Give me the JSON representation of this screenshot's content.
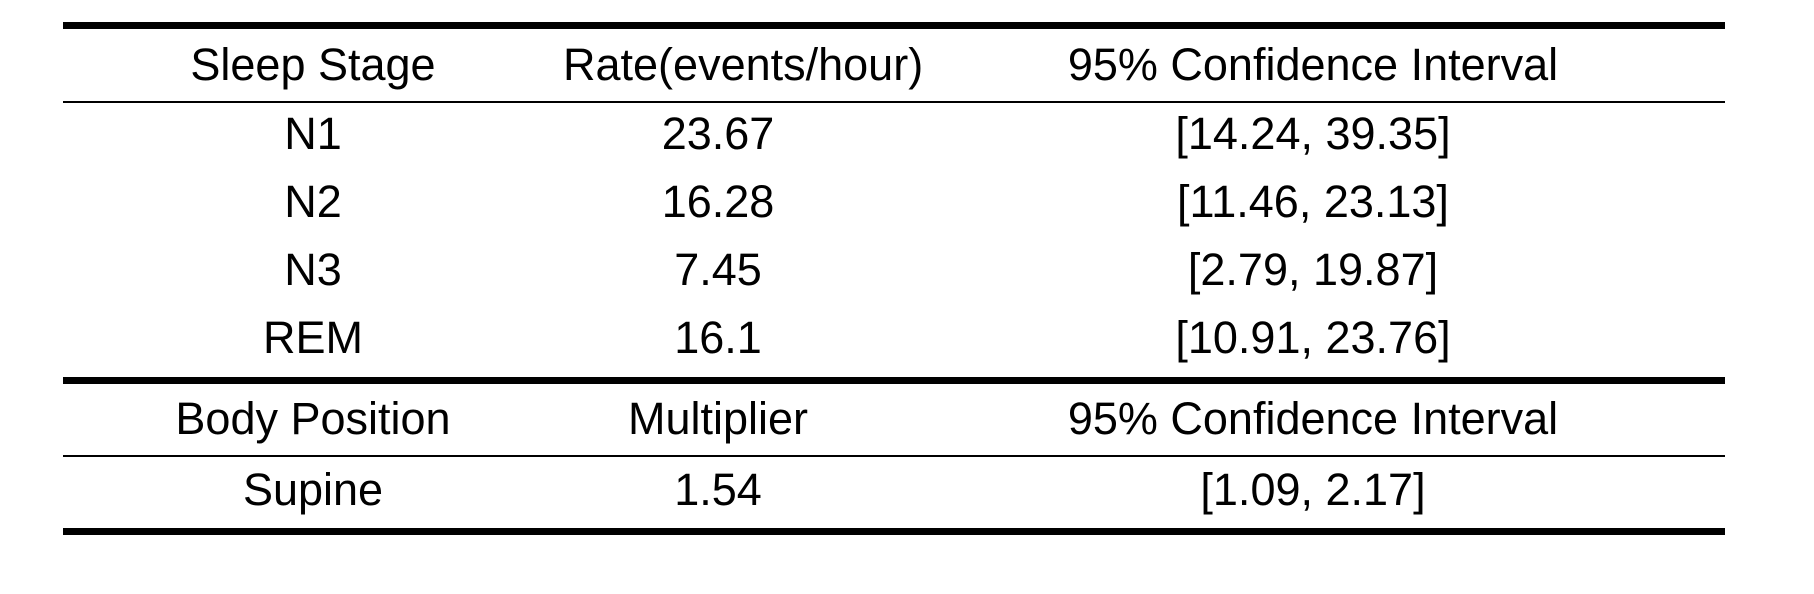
{
  "sections": [
    {
      "header": [
        "Sleep Stage",
        "Rate(events/hour)",
        "95% Confidence Interval"
      ],
      "rows": [
        [
          "N1",
          "23.67",
          "[14.24, 39.35]"
        ],
        [
          "N2",
          "16.28",
          "[11.46, 23.13]"
        ],
        [
          "N3",
          "7.45",
          "[2.79, 19.87]"
        ],
        [
          "REM",
          "16.1",
          "[10.91, 23.76]"
        ]
      ]
    },
    {
      "header": [
        "Body Position",
        "Multiplier",
        "95% Confidence Interval"
      ],
      "rows": [
        [
          "Supine",
          "1.54",
          "[1.09, 2.17]"
        ]
      ]
    }
  ]
}
